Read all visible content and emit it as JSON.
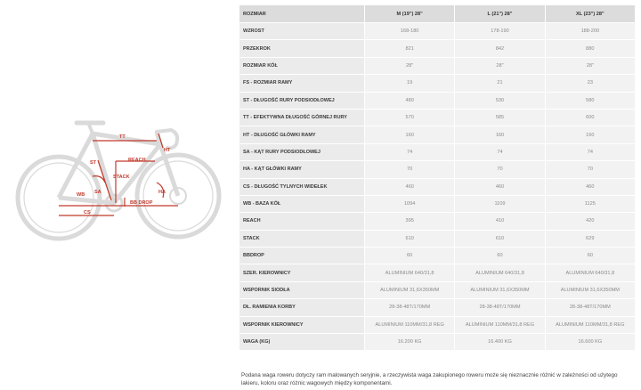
{
  "diagram": {
    "labels": {
      "tt": "TT",
      "ht": "HT",
      "st": "ST",
      "reach": "REACH",
      "stack": "STACK",
      "sa": "SA",
      "ha": "HA",
      "wb": "WB",
      "cs": "CS",
      "bbdrop": "BB DROP"
    },
    "colors": {
      "frame": "#d8d8d8",
      "dimension": "#c0392b"
    }
  },
  "table": {
    "header": {
      "label": "ROZMIAR",
      "sizes": [
        "M (19\") 28\"",
        "L (21\") 28\"",
        "XL (23\") 28\""
      ]
    },
    "rows": [
      {
        "label": "WZROST",
        "values": [
          "168-180",
          "178-190",
          "188-200"
        ]
      },
      {
        "label": "PRZEKROK",
        "values": [
          "821",
          "842",
          "880"
        ]
      },
      {
        "label": "ROZMIAR KÓŁ",
        "values": [
          "28\"",
          "28\"",
          "28\""
        ]
      },
      {
        "label": "FS - ROZMIAR RAMY",
        "values": [
          "19",
          "21",
          "23"
        ]
      },
      {
        "label": "ST - DŁUGOŚĆ RURY PODSIODŁOWEJ",
        "values": [
          "480",
          "530",
          "580"
        ]
      },
      {
        "label": "TT - EFEKTYWNA DŁUGOŚĆ GÓRNEJ RURY",
        "values": [
          "570",
          "585",
          "600"
        ]
      },
      {
        "label": "HT - DŁUGOŚĆ GŁÓWKI RAMY",
        "values": [
          "160",
          "160",
          "160"
        ]
      },
      {
        "label": "SA - KĄT RURY PODSIODŁOWEJ",
        "values": [
          "74",
          "74",
          "74"
        ]
      },
      {
        "label": "HA - KĄT GŁÓWKI RAMY",
        "values": [
          "70",
          "70",
          "70"
        ]
      },
      {
        "label": "CS - DŁUGOŚĆ TYLNYCH WIDEŁEK",
        "values": [
          "460",
          "460",
          "460"
        ]
      },
      {
        "label": "WB - BAZA KÓŁ",
        "values": [
          "1094",
          "1109",
          "1125"
        ]
      },
      {
        "label": "REACH",
        "values": [
          "395",
          "410",
          "420"
        ]
      },
      {
        "label": "STACK",
        "values": [
          "610",
          "610",
          "629"
        ]
      },
      {
        "label": "BBDROP",
        "values": [
          "60",
          "60",
          "60"
        ]
      },
      {
        "label": "SZER. KIEROWNICY",
        "values": [
          "ALUMINIUM 640/31,8",
          "ALUMINIUM 640/31,8",
          "ALUMINIUM 640/31,8"
        ]
      },
      {
        "label": "WSPORNIK SIODŁA",
        "values": [
          "ALUMINIUM 31,6X350MM",
          "ALUMINIUM 31,6X350MM",
          "ALUMINIUM 31,6X350MM"
        ]
      },
      {
        "label": "DŁ. RAMIENIA KORBY",
        "values": [
          "28-38-48T/170MM",
          "28-38-48T/170MM",
          "28-38-48T/170MM"
        ]
      },
      {
        "label": "WSPORNIK KIEROWNICY",
        "values": [
          "ALUMINIUM 110MM/31,8 REG",
          "ALUMINIUM 110MM/31,8 REG",
          "ALUMINIUM 110MM/31,8 REG"
        ]
      },
      {
        "label": "WAGA (KG)",
        "values": [
          "16.200 KG",
          "16.400 KG",
          "16.600 KG"
        ]
      }
    ]
  },
  "note": "Podana waga roweru dotyczy ram malowanych seryjnie, a rzeczywista waga zakupionego roweru może się nieznacznie różnić w zależności od użytego lakieru, koloru oraz różnic wagowych między komponentami."
}
